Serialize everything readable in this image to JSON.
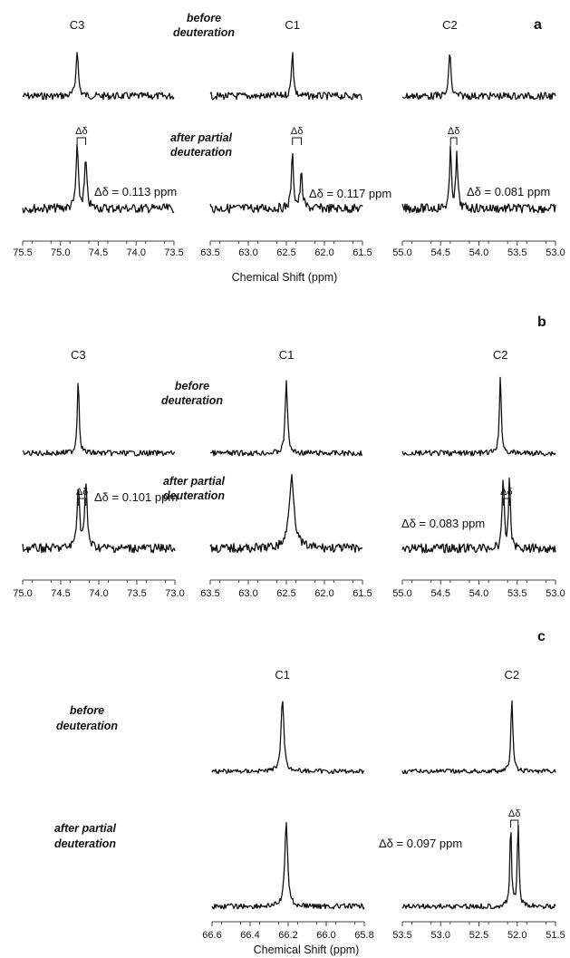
{
  "chart_data": [
    {
      "panel": "a",
      "type": "line",
      "conditions": [
        "before deuteration",
        "after partial deuteration"
      ],
      "xlabel": "Chemical Shift (ppm)",
      "subplots": [
        {
          "carbon": "C3",
          "xlim": [
            75.5,
            73.5
          ],
          "ticks": [
            "75.5",
            "75.0",
            "74.5",
            "74.0",
            "73.5"
          ],
          "before": {
            "peaks": [
              {
                "ppm": 74.78,
                "height": 1.0,
                "width": 0.035
              }
            ]
          },
          "after": {
            "peaks": [
              {
                "ppm": 74.78,
                "height": 1.0,
                "width": 0.035
              },
              {
                "ppm": 74.667,
                "height": 0.78,
                "width": 0.035
              }
            ]
          },
          "delta": "Δδ = 0.113 ppm"
        },
        {
          "carbon": "C1",
          "xlim": [
            63.5,
            61.5
          ],
          "ticks": [
            "63.5",
            "63.0",
            "62.5",
            "62.0",
            "61.5"
          ],
          "before": {
            "peaks": [
              {
                "ppm": 62.42,
                "height": 1.0,
                "width": 0.03
              }
            ]
          },
          "after": {
            "peaks": [
              {
                "ppm": 62.42,
                "height": 0.85,
                "width": 0.035
              },
              {
                "ppm": 62.303,
                "height": 0.55,
                "width": 0.035
              }
            ]
          },
          "delta": "Δδ = 0.117 ppm"
        },
        {
          "carbon": "C2",
          "xlim": [
            55.0,
            53.0
          ],
          "ticks": [
            "55.0",
            "54.5",
            "54.0",
            "53.5",
            "53.0"
          ],
          "before": {
            "peaks": [
              {
                "ppm": 54.38,
                "height": 1.0,
                "width": 0.03
              }
            ]
          },
          "after": {
            "peaks": [
              {
                "ppm": 54.37,
                "height": 0.95,
                "width": 0.03
              },
              {
                "ppm": 54.289,
                "height": 0.85,
                "width": 0.03
              }
            ]
          },
          "delta": "Δδ = 0.081 ppm"
        }
      ]
    },
    {
      "panel": "b",
      "type": "line",
      "conditions": [
        "before deuteration",
        "after partial deuteration"
      ],
      "xlabel": "",
      "subplots": [
        {
          "carbon": "C3",
          "xlim": [
            75.0,
            73.0
          ],
          "ticks": [
            "75.0",
            "74.5",
            "74.0",
            "73.5",
            "73.0"
          ],
          "before": {
            "peaks": [
              {
                "ppm": 74.27,
                "height": 1.0,
                "width": 0.03
              }
            ]
          },
          "after": {
            "peaks": [
              {
                "ppm": 74.27,
                "height": 0.85,
                "width": 0.04
              },
              {
                "ppm": 74.169,
                "height": 0.85,
                "width": 0.04
              }
            ]
          },
          "delta": "Δδ = 0.101 ppm"
        },
        {
          "carbon": "C1",
          "xlim": [
            63.5,
            61.5
          ],
          "ticks": [
            "63.5",
            "63.0",
            "62.5",
            "62.0",
            "61.5"
          ],
          "before": {
            "peaks": [
              {
                "ppm": 62.5,
                "height": 1.0,
                "width": 0.035
              }
            ]
          },
          "after": {
            "peaks": [
              {
                "ppm": 62.43,
                "height": 1.0,
                "width": 0.08
              }
            ]
          },
          "delta": ""
        },
        {
          "carbon": "C2",
          "xlim": [
            55.0,
            53.0
          ],
          "ticks": [
            "55.0",
            "54.5",
            "54.0",
            "53.5",
            "53.0"
          ],
          "before": {
            "peaks": [
              {
                "ppm": 53.72,
                "height": 1.0,
                "width": 0.03
              }
            ]
          },
          "after": {
            "peaks": [
              {
                "ppm": 53.683,
                "height": 1.0,
                "width": 0.028
              },
              {
                "ppm": 53.6,
                "height": 1.0,
                "width": 0.028
              }
            ]
          },
          "delta": "Δδ = 0.083 ppm"
        }
      ]
    },
    {
      "panel": "c",
      "type": "line",
      "conditions": [
        "before deuteration",
        "after partial deuteration"
      ],
      "xlabel": "Chemical Shift (ppm)",
      "subplots": [
        {
          "carbon": "C1",
          "xlim": [
            66.6,
            65.8
          ],
          "ticks": [
            "66.6",
            "66.4",
            "66.2",
            "66.0",
            "65.8"
          ],
          "before": {
            "peaks": [
              {
                "ppm": 66.23,
                "height": 1.0,
                "width": 0.018
              }
            ]
          },
          "after": {
            "peaks": [
              {
                "ppm": 66.21,
                "height": 1.0,
                "width": 0.018
              }
            ]
          },
          "delta": ""
        },
        {
          "carbon": "C2",
          "xlim": [
            53.5,
            51.5
          ],
          "ticks": [
            "53.5",
            "53.0",
            "52.5",
            "52.0",
            "51.5"
          ],
          "before": {
            "peaks": [
              {
                "ppm": 52.07,
                "height": 1.0,
                "width": 0.03
              }
            ]
          },
          "after": {
            "peaks": [
              {
                "ppm": 52.085,
                "height": 1.0,
                "width": 0.025
              },
              {
                "ppm": 51.988,
                "height": 1.0,
                "width": 0.025
              }
            ]
          },
          "delta": "Δδ = 0.097 ppm"
        }
      ]
    }
  ],
  "labels": {
    "panel_a": "a",
    "panel_b": "b",
    "panel_c": "c",
    "delta_symbol": "Δδ",
    "before_line1": "before",
    "before_line2": "deuteration",
    "after_line1": "after partial",
    "after_line2": "deuteration",
    "chemical_shift": "Chemical Shift (ppm)"
  }
}
